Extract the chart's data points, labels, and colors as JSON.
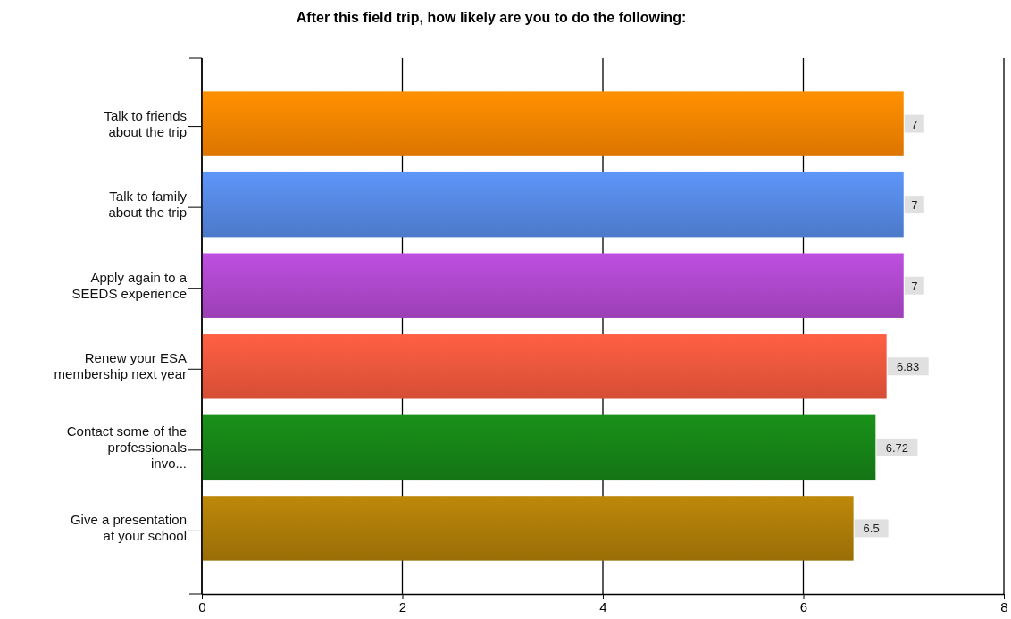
{
  "chart_data": {
    "type": "bar",
    "orientation": "horizontal",
    "title": "After this field trip, how likely are you to do the following:",
    "categories": [
      "Talk to friends\nabout the trip",
      "Talk to family\nabout the trip",
      "Apply again to a\nSEEDS experience",
      "Renew your ESA\nmembership next year",
      "Contact some of the\nprofessionals\ninvo...",
      "Give a presentation\nat your school"
    ],
    "values": [
      7,
      7,
      7,
      6.83,
      6.72,
      6.5
    ],
    "colors": [
      "#f08000",
      "#5384dc",
      "#a946c6",
      "#e9553b",
      "#168016",
      "#a87808"
    ],
    "xlim": [
      0,
      8
    ],
    "xticks": [
      0,
      2,
      4,
      6,
      8
    ],
    "grid": "x",
    "data_labels": true
  }
}
